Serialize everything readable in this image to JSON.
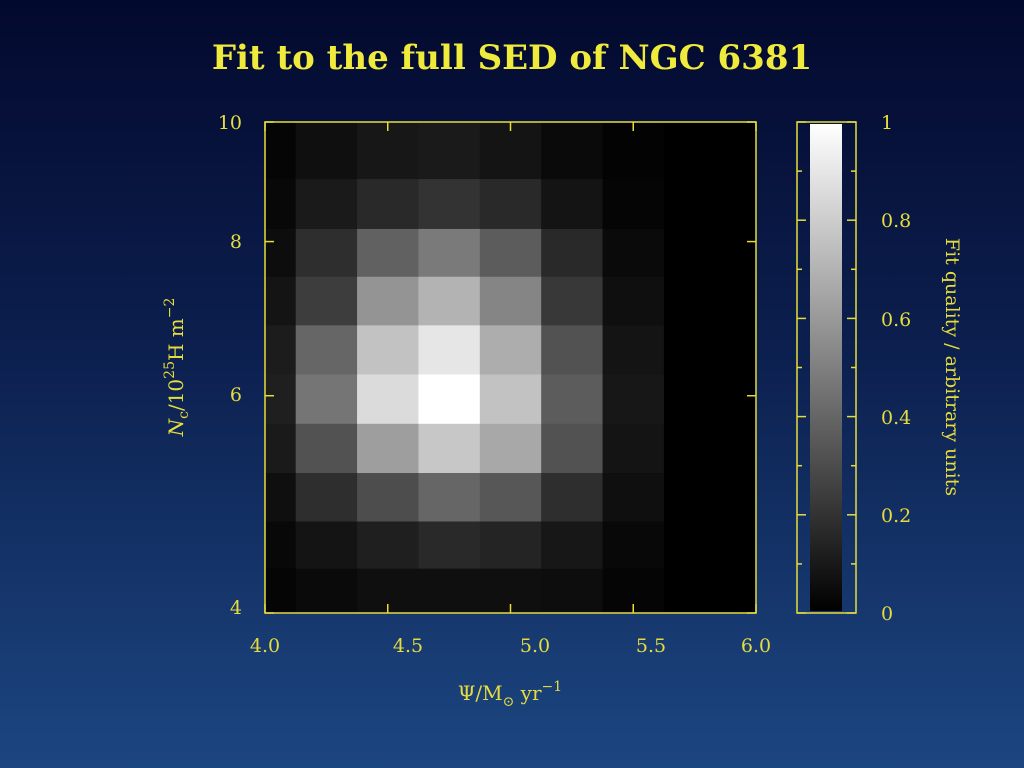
{
  "title": "Fit to the full SED of NGC 6381",
  "chart_data": {
    "type": "heatmap",
    "title": "Fit to the full SED of NGC 6381",
    "xlabel": {
      "symbol": "Ψ/M",
      "sub": "⊙",
      "unit": " yr",
      "sup": "−1"
    },
    "ylabel": {
      "sym": "N",
      "sub": "c",
      "mid": "/10",
      "sup1": "25",
      "unit": "H m",
      "sup2": "−2"
    },
    "colorbar_label": "Fit quality / arbitrary units",
    "xlim": [
      4.0,
      6.0
    ],
    "ylim": [
      4,
      10
    ],
    "y_scale": "log",
    "x_ticks": [
      "4.0",
      "4.5",
      "5.0",
      "5.5",
      "6.0"
    ],
    "y_ticks": [
      "4",
      "6",
      "8",
      "10"
    ],
    "colorbar_ticks": [
      "0",
      "0.2",
      "0.4",
      "0.6",
      "0.8",
      "1"
    ],
    "colorbar_range": [
      0,
      1
    ],
    "colormap": [
      "#000000",
      "#ffffff"
    ],
    "line_color": "#e6dd3c",
    "x_edges": [
      4.0,
      4.125,
      4.375,
      4.625,
      4.875,
      5.125,
      5.375,
      5.625,
      6.0
    ],
    "y_edges": [
      4.0,
      4.35,
      4.75,
      5.2,
      5.7,
      6.25,
      6.85,
      7.5,
      8.2,
      9.0,
      10.0
    ],
    "values": [
      [
        0.02,
        0.04,
        0.06,
        0.06,
        0.06,
        0.05,
        0.02,
        0.0
      ],
      [
        0.03,
        0.08,
        0.12,
        0.16,
        0.14,
        0.09,
        0.03,
        0.0
      ],
      [
        0.06,
        0.18,
        0.3,
        0.4,
        0.34,
        0.18,
        0.06,
        0.0
      ],
      [
        0.1,
        0.32,
        0.62,
        0.78,
        0.66,
        0.32,
        0.08,
        0.0
      ],
      [
        0.12,
        0.46,
        0.86,
        1.0,
        0.76,
        0.36,
        0.09,
        0.0
      ],
      [
        0.11,
        0.4,
        0.76,
        0.9,
        0.68,
        0.32,
        0.08,
        0.0
      ],
      [
        0.08,
        0.24,
        0.58,
        0.7,
        0.52,
        0.22,
        0.06,
        0.0
      ],
      [
        0.05,
        0.18,
        0.38,
        0.48,
        0.36,
        0.16,
        0.04,
        0.0
      ],
      [
        0.03,
        0.1,
        0.16,
        0.2,
        0.16,
        0.08,
        0.02,
        0.0
      ],
      [
        0.02,
        0.06,
        0.09,
        0.1,
        0.08,
        0.04,
        0.01,
        0.0
      ]
    ]
  }
}
